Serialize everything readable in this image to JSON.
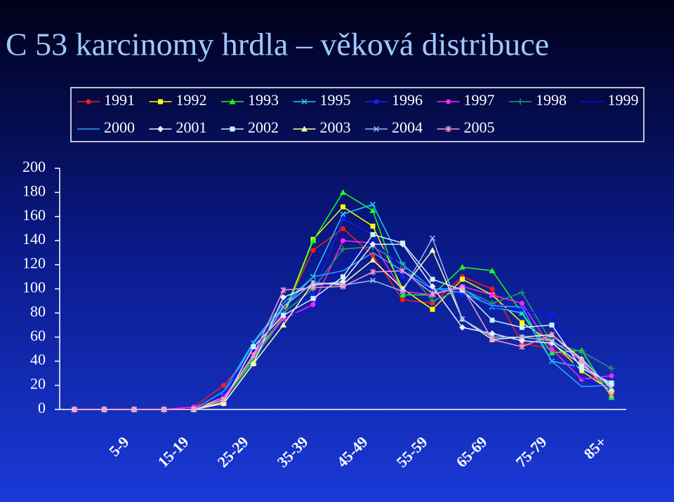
{
  "chart_data": {
    "type": "line",
    "title": "C 53  karcinomy hrdla – věková distribuce",
    "categories": [
      null,
      "5-9",
      null,
      "15-19",
      null,
      "25-29",
      null,
      "35-39",
      null,
      "45-49",
      null,
      "55-59",
      null,
      "65-69",
      null,
      "75-79",
      null,
      "85+",
      null
    ],
    "ylim": [
      0,
      200
    ],
    "yticks": [
      0,
      20,
      40,
      60,
      80,
      100,
      120,
      140,
      160,
      180,
      200
    ],
    "grid": false,
    "legend": "top",
    "series": [
      {
        "name": "1991",
        "color": "#ff1a1a",
        "marker": "circle",
        "values": [
          0,
          0,
          0,
          0,
          2,
          20,
          48,
          80,
          132,
          150,
          128,
          91,
          88,
          110,
          100,
          55,
          50,
          38,
          12
        ]
      },
      {
        "name": "1992",
        "color": "#ffff00",
        "marker": "square",
        "values": [
          0,
          0,
          0,
          0,
          0,
          10,
          44,
          78,
          141,
          168,
          152,
          100,
          83,
          108,
          95,
          72,
          56,
          32,
          15
        ]
      },
      {
        "name": "1993",
        "color": "#1aff1a",
        "marker": "triangle",
        "values": [
          0,
          0,
          0,
          0,
          0,
          8,
          42,
          76,
          140,
          180,
          165,
          95,
          95,
          118,
          115,
          80,
          47,
          49,
          10
        ]
      },
      {
        "name": "1995",
        "color": "#22ccff",
        "marker": "x",
        "values": [
          0,
          0,
          0,
          0,
          0,
          12,
          55,
          85,
          110,
          162,
          170,
          120,
          100,
          100,
          85,
          80,
          40,
          35,
          20
        ]
      },
      {
        "name": "1996",
        "color": "#1a1aff",
        "marker": "circle",
        "values": [
          0,
          0,
          0,
          0,
          0,
          15,
          50,
          82,
          95,
          158,
          145,
          110,
          100,
          95,
          88,
          83,
          78,
          25,
          18
        ]
      },
      {
        "name": "1997",
        "color": "#ff22ff",
        "marker": "circle",
        "values": [
          0,
          0,
          0,
          0,
          2,
          10,
          45,
          75,
          87,
          140,
          138,
          98,
          95,
          102,
          95,
          88,
          50,
          25,
          28
        ]
      },
      {
        "name": "1998",
        "color": "#2a9a6a",
        "marker": "plus",
        "values": [
          0,
          0,
          0,
          0,
          0,
          8,
          40,
          80,
          100,
          133,
          135,
          120,
          90,
          100,
          88,
          97,
          55,
          48,
          34
        ]
      },
      {
        "name": "1999",
        "color": "#0a0aee",
        "marker": "none",
        "values": [
          0,
          0,
          0,
          0,
          0,
          12,
          48,
          78,
          82,
          120,
          140,
          118,
          100,
          98,
          85,
          82,
          78,
          26,
          15
        ]
      },
      {
        "name": "2000",
        "color": "#2aa8ff",
        "marker": "none",
        "values": [
          0,
          0,
          0,
          0,
          0,
          15,
          56,
          88,
          110,
          115,
          130,
          115,
          100,
          97,
          86,
          85,
          40,
          19,
          20
        ]
      },
      {
        "name": "2001",
        "color": "#e8f0ff",
        "marker": "diamond",
        "values": [
          0,
          0,
          0,
          0,
          0,
          5,
          38,
          93,
          103,
          106,
          137,
          137,
          102,
          68,
          63,
          57,
          55,
          37,
          20
        ]
      },
      {
        "name": "2002",
        "color": "#ccf2ff",
        "marker": "square",
        "values": [
          0,
          0,
          0,
          0,
          0,
          6,
          52,
          78,
          92,
          110,
          145,
          138,
          108,
          99,
          74,
          68,
          70,
          34,
          22
        ]
      },
      {
        "name": "2003",
        "color": "#ffffaa",
        "marker": "triangle",
        "values": [
          0,
          0,
          0,
          0,
          0,
          5,
          38,
          70,
          105,
          104,
          124,
          100,
          132,
          75,
          58,
          60,
          62,
          42,
          17
        ]
      },
      {
        "name": "2004",
        "color": "#9ab8ff",
        "marker": "x",
        "values": [
          0,
          0,
          0,
          0,
          0,
          8,
          45,
          85,
          105,
          103,
          107,
          98,
          142,
          75,
          60,
          60,
          57,
          41,
          18
        ]
      },
      {
        "name": "2005",
        "color": "#ff99cc",
        "marker": "star",
        "values": [
          0,
          0,
          0,
          0,
          0,
          8,
          45,
          99,
          101,
          102,
          114,
          115,
          96,
          101,
          58,
          52,
          62,
          40,
          12
        ]
      }
    ]
  }
}
